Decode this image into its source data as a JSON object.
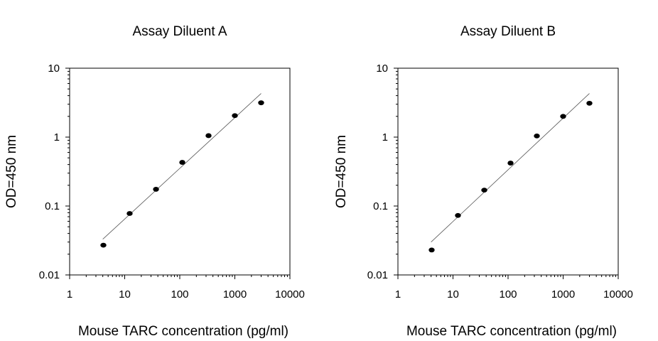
{
  "chart_data": [
    {
      "type": "scatter",
      "title": "Assay Diluent A",
      "xlabel": "Mouse TARC concentration (pg/ml)",
      "ylabel": "OD=450 nm",
      "xscale": "log",
      "yscale": "log",
      "xlim": [
        1,
        10000
      ],
      "ylim": [
        0.01,
        10
      ],
      "xticks": [
        "1",
        "10",
        "100",
        "1000",
        "10000"
      ],
      "yticks": [
        "0.01",
        "0.1",
        "1",
        "10"
      ],
      "grid": false,
      "legend": "none",
      "series": [
        {
          "points": [
            {
              "x": 4.1,
              "y": 0.027
            },
            {
              "x": 12.3,
              "y": 0.078
            },
            {
              "x": 37,
              "y": 0.175
            },
            {
              "x": 111,
              "y": 0.43
            },
            {
              "x": 333,
              "y": 1.05
            },
            {
              "x": 1000,
              "y": 2.05
            },
            {
              "x": 3000,
              "y": 3.15
            }
          ]
        }
      ],
      "fit_line": {
        "x": [
          4,
          3000
        ],
        "y": [
          0.033,
          4.3
        ]
      }
    },
    {
      "type": "scatter",
      "title": "Assay Diluent B",
      "xlabel": "Mouse TARC concentration (pg/ml)",
      "ylabel": "OD=450 nm",
      "xscale": "log",
      "yscale": "log",
      "xlim": [
        1,
        10000
      ],
      "ylim": [
        0.01,
        10
      ],
      "xticks": [
        "1",
        "10",
        "100",
        "1000",
        "10000"
      ],
      "yticks": [
        "0.01",
        "0.1",
        "1",
        "10"
      ],
      "grid": false,
      "legend": "none",
      "series": [
        {
          "points": [
            {
              "x": 4.1,
              "y": 0.023
            },
            {
              "x": 12.3,
              "y": 0.073
            },
            {
              "x": 37,
              "y": 0.17
            },
            {
              "x": 111,
              "y": 0.42
            },
            {
              "x": 333,
              "y": 1.04
            },
            {
              "x": 1000,
              "y": 2.0
            },
            {
              "x": 3000,
              "y": 3.1
            }
          ]
        }
      ],
      "fit_line": {
        "x": [
          4,
          3000
        ],
        "y": [
          0.03,
          4.3
        ]
      }
    }
  ]
}
